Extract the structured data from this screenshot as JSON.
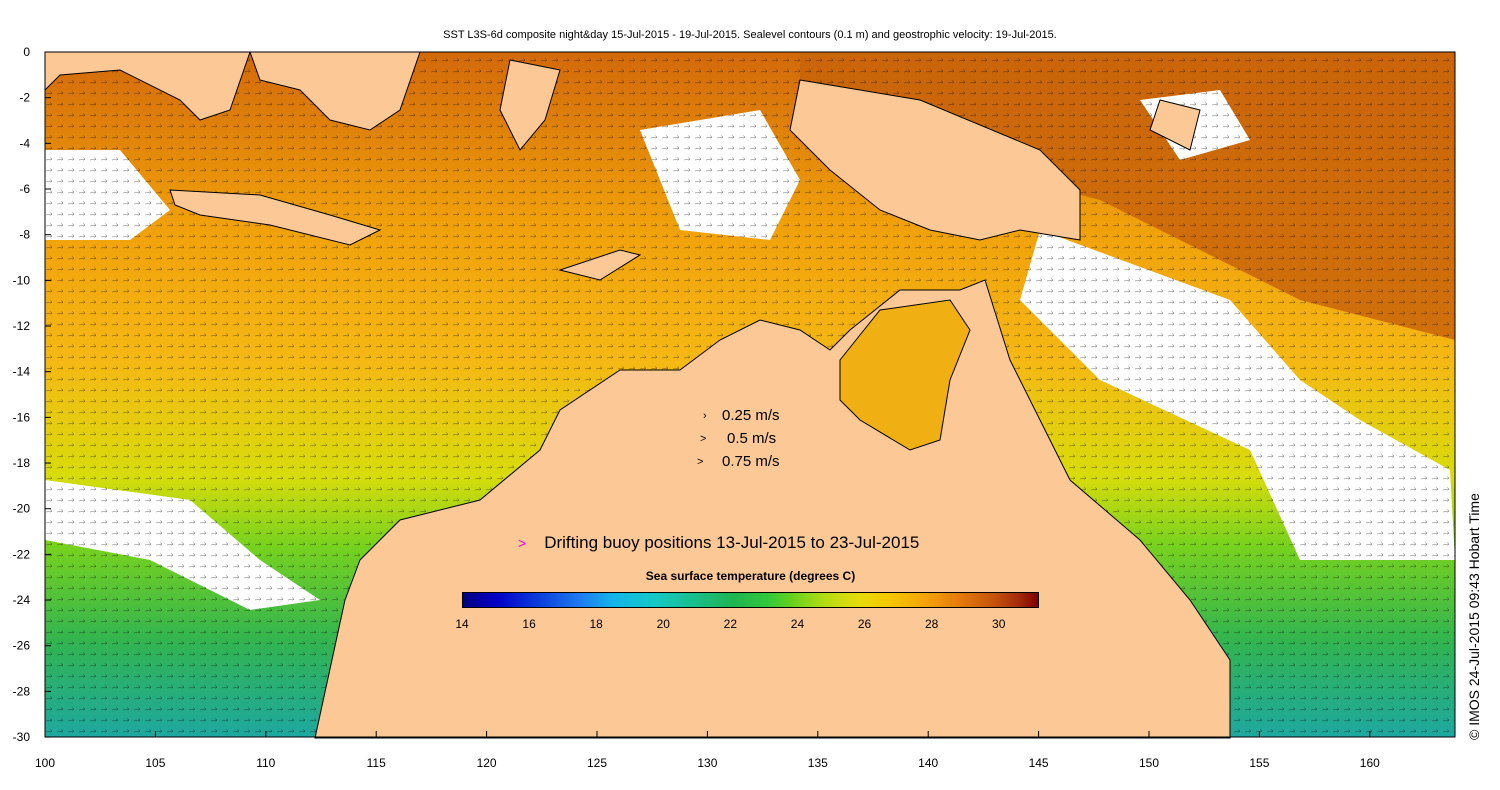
{
  "title": "SST L3S-6d composite night&day 15-Jul-2015 - 19-Jul-2015. Sealevel contours (0.1 m) and geostrophic velocity: 19-Jul-2015.",
  "axes": {
    "x_ticks": [
      "100",
      "105",
      "110",
      "115",
      "120",
      "125",
      "130",
      "135",
      "140",
      "145",
      "150",
      "155",
      "160"
    ],
    "y_ticks": [
      "0",
      "-2",
      "-4",
      "-6",
      "-8",
      "-10",
      "-12",
      "-14",
      "-16",
      "-18",
      "-20",
      "-22",
      "-24",
      "-26",
      "-28",
      "-30"
    ]
  },
  "velocity_legend": [
    {
      "symbol": "›",
      "label": "0.25 m/s"
    },
    {
      "symbol": ">",
      "label": "0.5 m/s"
    },
    {
      "symbol": ">",
      "label": "0.75 m/s"
    }
  ],
  "buoy_legend": {
    "symbol": ">",
    "label": "Drifting buoy positions 13-Jul-2015 to 23-Jul-2015"
  },
  "colorbar": {
    "title": "Sea surface temperature (degrees C)",
    "ticks": [
      "14",
      "16",
      "18",
      "20",
      "22",
      "24",
      "26",
      "28",
      "30"
    ]
  },
  "credit": "© IMOS 24-Jul-2015 09:43 Hobart Time",
  "colors": {
    "land": "#fcc896",
    "no_data": "#ffffff",
    "buoy": "#e000e0"
  }
}
